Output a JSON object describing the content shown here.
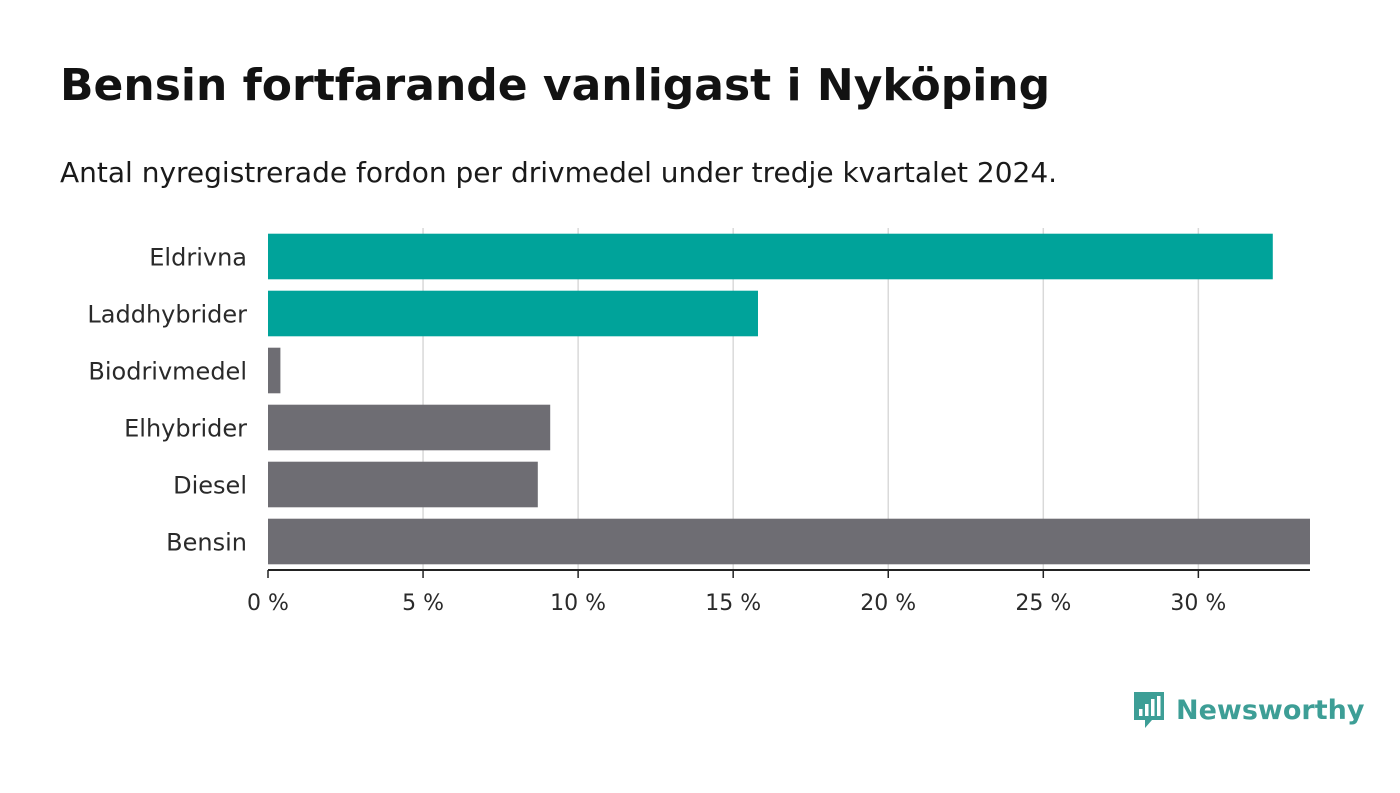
{
  "title": "Bensin fortfarande vanligast i Nyköping",
  "subtitle": "Antal nyregistrerade fordon per drivmedel under tredje kvartalet 2024.",
  "brand": {
    "name": "Newsworthy"
  },
  "colors": {
    "highlight": "#00a39a",
    "default": "#6e6d73",
    "grid": "#d9d9d9",
    "axis": "#222222"
  },
  "chart_data": {
    "type": "bar",
    "orientation": "horizontal",
    "categories": [
      "Eldrivna",
      "Laddhybrider",
      "Biodrivmedel",
      "Elhybrider",
      "Diesel",
      "Bensin"
    ],
    "values": [
      32.4,
      15.8,
      0.4,
      9.1,
      8.7,
      33.6
    ],
    "highlighted": [
      "Eldrivna",
      "Laddhybrider"
    ],
    "xlim": [
      0,
      33.6
    ],
    "xticks": [
      0,
      5,
      10,
      15,
      20,
      25,
      30
    ],
    "xtick_labels": [
      "0 %",
      "5 %",
      "10 %",
      "15 %",
      "20 %",
      "25 %",
      "30 %"
    ],
    "grid": true,
    "title": "Bensin fortfarande vanligast i Nyköping",
    "xlabel": "",
    "ylabel": ""
  }
}
